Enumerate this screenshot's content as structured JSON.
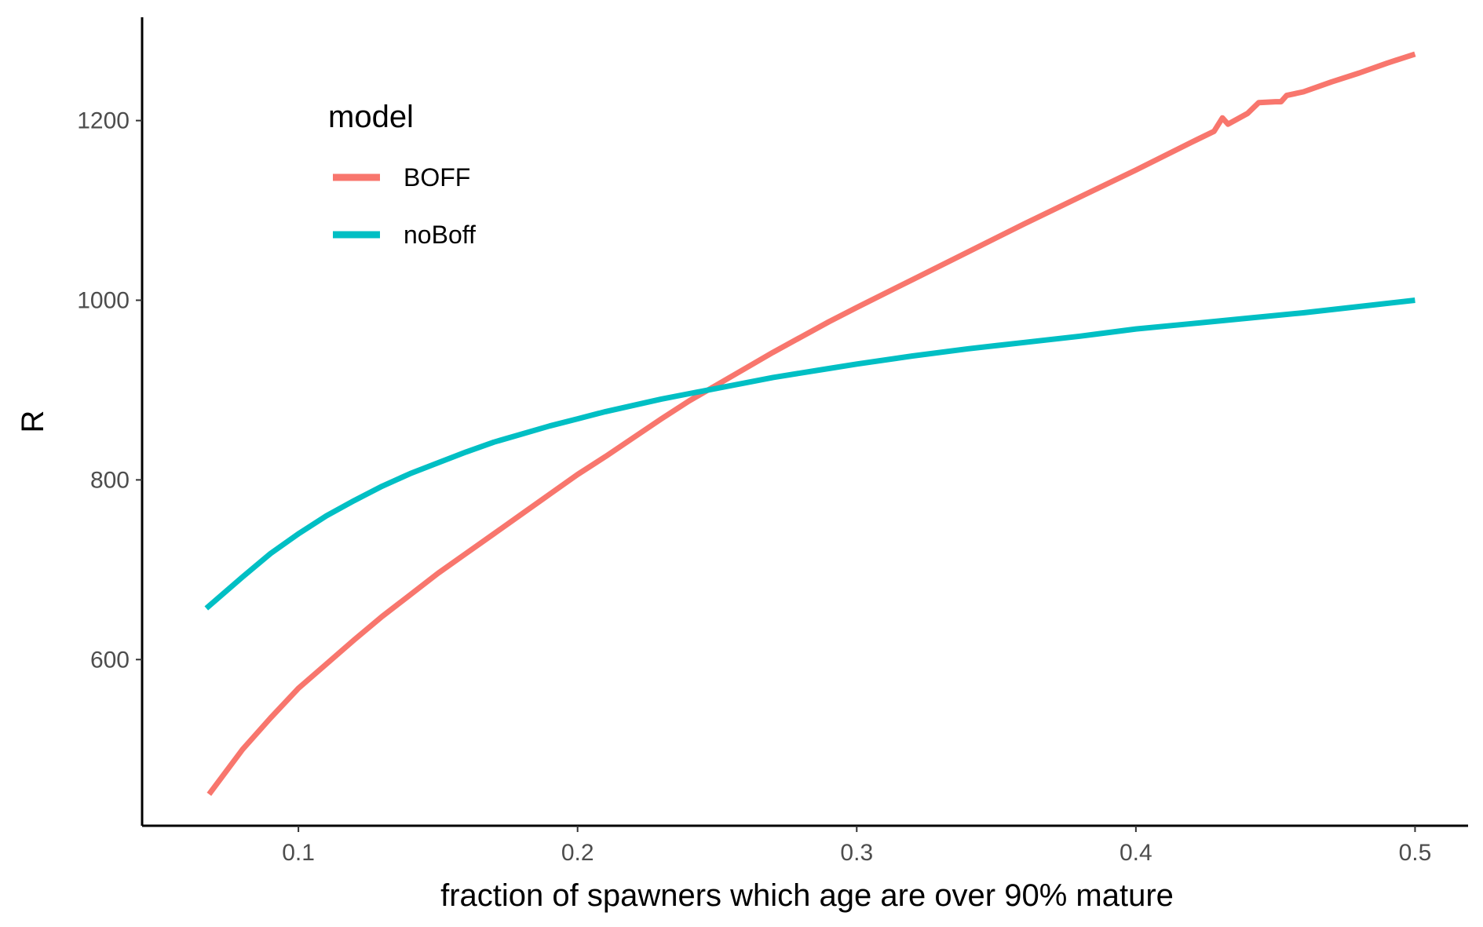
{
  "chart_data": {
    "type": "line",
    "title": "",
    "xlabel": "fraction of spawners which age are over 90% mature",
    "ylabel": "R",
    "xlim": [
      0.044,
      0.519
    ],
    "ylim": [
      415,
      1315
    ],
    "x_ticks": [
      0.1,
      0.2,
      0.3,
      0.4,
      0.5
    ],
    "x_tick_labels": [
      "0.1",
      "0.2",
      "0.3",
      "0.4",
      "0.5"
    ],
    "y_ticks": [
      600,
      800,
      1000,
      1200
    ],
    "y_tick_labels": [
      "600",
      "800",
      "1000",
      "1200"
    ],
    "grid": false,
    "legend": {
      "title": "model",
      "position": "top-left inside",
      "entries": [
        {
          "label": "BOFF",
          "color": "#F8766D"
        },
        {
          "label": "noBoff",
          "color": "#00BFC4"
        }
      ]
    },
    "series": [
      {
        "name": "BOFF",
        "color": "#F8766D",
        "points": [
          [
            0.068,
            450
          ],
          [
            0.08,
            500
          ],
          [
            0.09,
            535
          ],
          [
            0.1,
            568
          ],
          [
            0.11,
            595
          ],
          [
            0.12,
            622
          ],
          [
            0.13,
            648
          ],
          [
            0.14,
            672
          ],
          [
            0.15,
            696
          ],
          [
            0.16,
            718
          ],
          [
            0.17,
            740
          ],
          [
            0.18,
            762
          ],
          [
            0.19,
            784
          ],
          [
            0.2,
            806
          ],
          [
            0.21,
            826
          ],
          [
            0.22,
            847
          ],
          [
            0.23,
            868
          ],
          [
            0.24,
            888
          ],
          [
            0.25,
            906
          ],
          [
            0.26,
            924
          ],
          [
            0.27,
            942
          ],
          [
            0.28,
            959
          ],
          [
            0.29,
            976
          ],
          [
            0.3,
            992
          ],
          [
            0.32,
            1023
          ],
          [
            0.34,
            1054
          ],
          [
            0.36,
            1085
          ],
          [
            0.38,
            1115
          ],
          [
            0.4,
            1145
          ],
          [
            0.42,
            1176
          ],
          [
            0.428,
            1188
          ],
          [
            0.431,
            1203
          ],
          [
            0.433,
            1196
          ],
          [
            0.44,
            1208
          ],
          [
            0.444,
            1220
          ],
          [
            0.45,
            1221
          ],
          [
            0.452,
            1221
          ],
          [
            0.454,
            1228
          ],
          [
            0.457,
            1230
          ],
          [
            0.46,
            1232
          ],
          [
            0.47,
            1243
          ],
          [
            0.48,
            1253
          ],
          [
            0.49,
            1264
          ],
          [
            0.5,
            1274
          ]
        ]
      },
      {
        "name": "noBoff",
        "color": "#00BFC4",
        "points": [
          [
            0.067,
            657
          ],
          [
            0.08,
            692
          ],
          [
            0.09,
            718
          ],
          [
            0.1,
            740
          ],
          [
            0.11,
            760
          ],
          [
            0.12,
            777
          ],
          [
            0.13,
            793
          ],
          [
            0.14,
            807
          ],
          [
            0.15,
            819
          ],
          [
            0.16,
            831
          ],
          [
            0.17,
            842
          ],
          [
            0.18,
            851
          ],
          [
            0.19,
            860
          ],
          [
            0.2,
            868
          ],
          [
            0.21,
            876
          ],
          [
            0.22,
            883
          ],
          [
            0.23,
            890
          ],
          [
            0.24,
            896
          ],
          [
            0.25,
            902
          ],
          [
            0.26,
            908
          ],
          [
            0.27,
            914
          ],
          [
            0.28,
            919
          ],
          [
            0.29,
            924
          ],
          [
            0.3,
            929
          ],
          [
            0.32,
            938
          ],
          [
            0.34,
            946
          ],
          [
            0.36,
            953
          ],
          [
            0.38,
            960
          ],
          [
            0.4,
            968
          ],
          [
            0.42,
            974
          ],
          [
            0.44,
            980
          ],
          [
            0.46,
            986
          ],
          [
            0.48,
            993
          ],
          [
            0.5,
            1000
          ]
        ]
      }
    ]
  }
}
